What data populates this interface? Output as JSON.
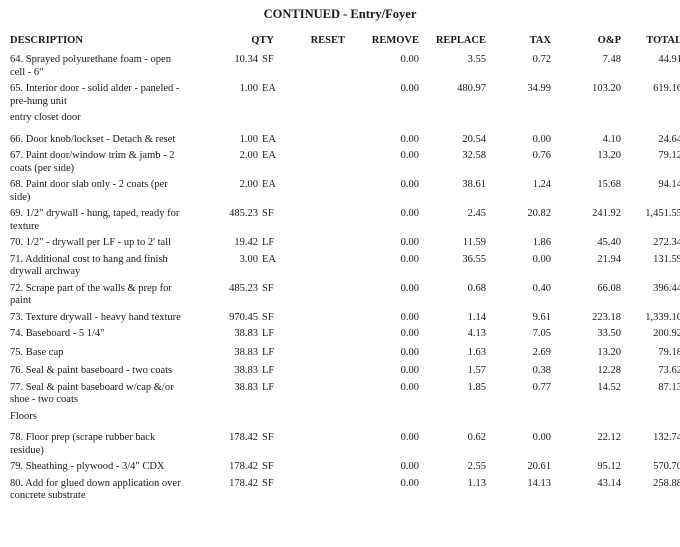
{
  "title": "CONTINUED - Entry/Foyer",
  "columns": {
    "description": "DESCRIPTION",
    "qty": "QTY",
    "reset": "RESET",
    "remove": "REMOVE",
    "replace": "REPLACE",
    "tax": "TAX",
    "op": "O&P",
    "total": "TOTAL"
  },
  "rows": [
    {
      "type": "item",
      "desc": "64.  Sprayed polyurethane foam - open cell - 6\"",
      "qty": "10.34",
      "unit": "SF",
      "reset": "",
      "remove": "0.00",
      "replace": "3.55",
      "tax": "0.72",
      "op": "7.48",
      "total": "44.91"
    },
    {
      "type": "item",
      "desc": "65.  Interior door - solid alder - paneled - pre-hung unit",
      "qty": "1.00",
      "unit": "EA",
      "reset": "",
      "remove": "0.00",
      "replace": "480.97",
      "tax": "34.99",
      "op": "103.20",
      "total": "619.16"
    },
    {
      "type": "section",
      "desc": "entry closet door"
    },
    {
      "type": "item",
      "desc": "66.  Door knob/lockset - Detach & reset",
      "qty": "1.00",
      "unit": "EA",
      "reset": "",
      "remove": "0.00",
      "replace": "20.54",
      "tax": "0.00",
      "op": "4.10",
      "total": "24.64"
    },
    {
      "type": "item",
      "desc": "67.  Paint door/window trim & jamb - 2 coats (per side)",
      "qty": "2.00",
      "unit": "EA",
      "reset": "",
      "remove": "0.00",
      "replace": "32.58",
      "tax": "0.76",
      "op": "13.20",
      "total": "79.12"
    },
    {
      "type": "item",
      "desc": "68.  Paint door slab only - 2 coats (per side)",
      "qty": "2.00",
      "unit": "EA",
      "reset": "",
      "remove": "0.00",
      "replace": "38.61",
      "tax": "1.24",
      "op": "15.68",
      "total": "94.14"
    },
    {
      "type": "item",
      "desc": "69.  1/2\" drywall - hung, taped, ready for texture",
      "qty": "485.23",
      "unit": "SF",
      "reset": "",
      "remove": "0.00",
      "replace": "2.45",
      "tax": "20.82",
      "op": "241.92",
      "total": "1,451.55"
    },
    {
      "type": "item",
      "desc": "70.  1/2\" - drywall per LF - up to 2' tall",
      "qty": "19.42",
      "unit": "LF",
      "reset": "",
      "remove": "0.00",
      "replace": "11.59",
      "tax": "1.86",
      "op": "45.40",
      "total": "272.34"
    },
    {
      "type": "item",
      "desc": "71.  Additional cost to hang and finish drywall archway",
      "qty": "3.00",
      "unit": "EA",
      "reset": "",
      "remove": "0.00",
      "replace": "36.55",
      "tax": "0.00",
      "op": "21.94",
      "total": "131.59"
    },
    {
      "type": "item",
      "desc": "72.  Scrape part of the walls & prep for paint",
      "qty": "485.23",
      "unit": "SF",
      "reset": "",
      "remove": "0.00",
      "replace": "0.68",
      "tax": "0.40",
      "op": "66.08",
      "total": "396.44"
    },
    {
      "type": "item",
      "desc": "73.  Texture drywall - heavy hand texture",
      "qty": "970.45",
      "unit": "SF",
      "reset": "",
      "remove": "0.00",
      "replace": "1.14",
      "tax": "9.61",
      "op": "223.18",
      "total": "1,339.10"
    },
    {
      "type": "item",
      "desc": "74.  Baseboard - 5 1/4\"",
      "qty": "38.83",
      "unit": "LF",
      "reset": "",
      "remove": "0.00",
      "replace": "4.13",
      "tax": "7.05",
      "op": "33.50",
      "total": "200.92"
    },
    {
      "type": "item",
      "desc": "75.  Base cap",
      "qty": "38.83",
      "unit": "LF",
      "reset": "",
      "remove": "0.00",
      "replace": "1.63",
      "tax": "2.69",
      "op": "13.20",
      "total": "79.18"
    },
    {
      "type": "item",
      "desc": "76.  Seal & paint baseboard - two coats",
      "qty": "38.83",
      "unit": "LF",
      "reset": "",
      "remove": "0.00",
      "replace": "1.57",
      "tax": "0.38",
      "op": "12.28",
      "total": "73.62"
    },
    {
      "type": "item",
      "desc": "77.  Seal & paint baseboard w/cap &/or shoe - two coats",
      "qty": "38.83",
      "unit": "LF",
      "reset": "",
      "remove": "0.00",
      "replace": "1.85",
      "tax": "0.77",
      "op": "14.52",
      "total": "87.13"
    },
    {
      "type": "section",
      "desc": "Floors"
    },
    {
      "type": "item",
      "desc": "78.  Floor prep (scrape rubber back residue)",
      "qty": "178.42",
      "unit": "SF",
      "reset": "",
      "remove": "0.00",
      "replace": "0.62",
      "tax": "0.00",
      "op": "22.12",
      "total": "132.74"
    },
    {
      "type": "item",
      "desc": "79.  Sheathing - plywood - 3/4\" CDX",
      "qty": "178.42",
      "unit": "SF",
      "reset": "",
      "remove": "0.00",
      "replace": "2.55",
      "tax": "20.61",
      "op": "95.12",
      "total": "570.70"
    },
    {
      "type": "item",
      "desc": "80.  Add for glued down application over concrete substrate",
      "qty": "178.42",
      "unit": "SF",
      "reset": "",
      "remove": "0.00",
      "replace": "1.13",
      "tax": "14.13",
      "op": "43.14",
      "total": "258.88"
    }
  ]
}
